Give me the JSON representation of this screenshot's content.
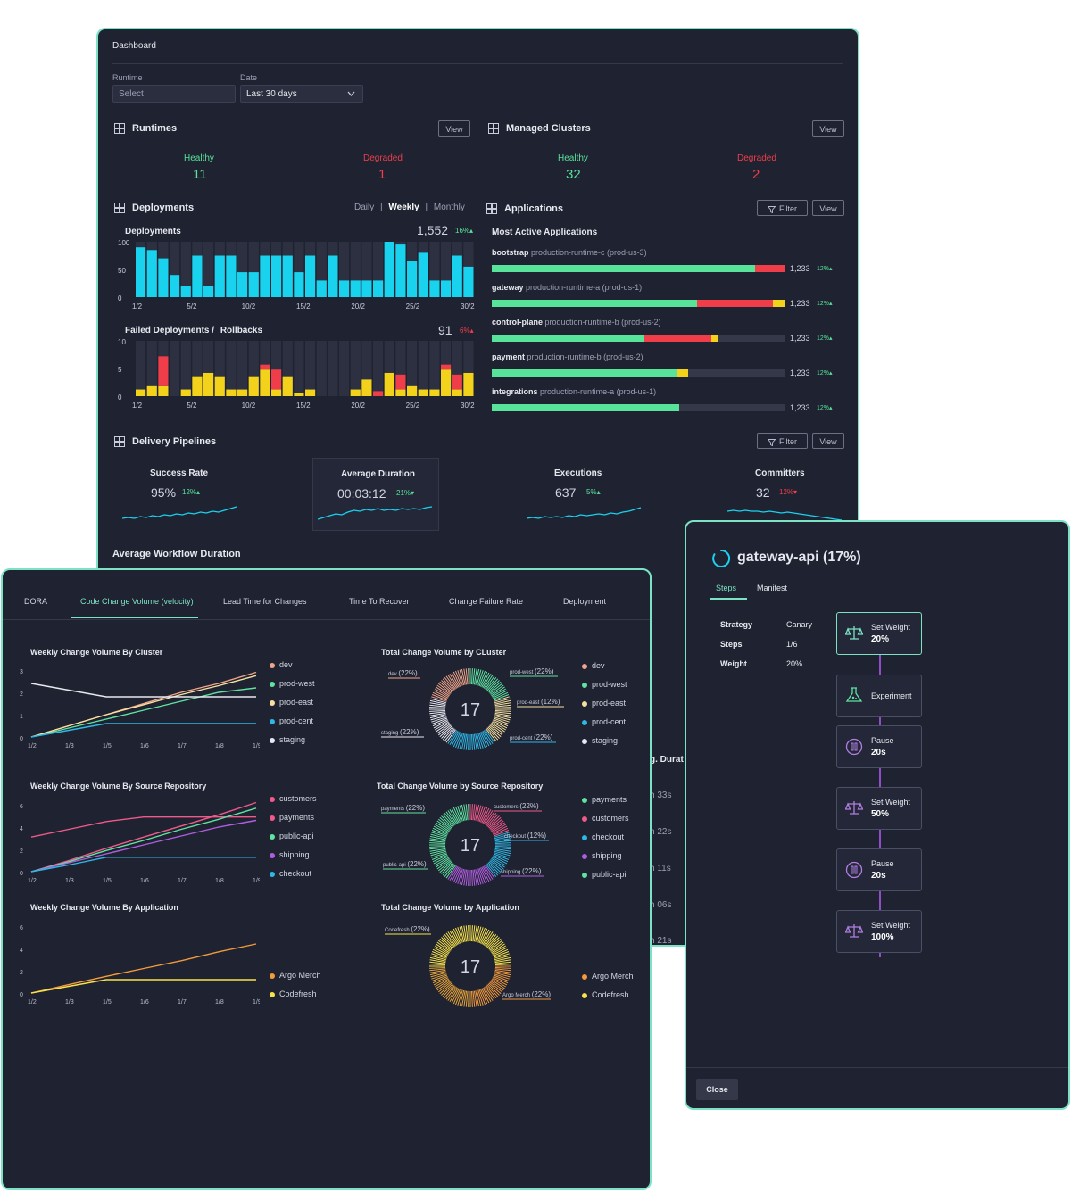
{
  "dashboard": {
    "title": "Dashboard",
    "runtime_label": "Runtime",
    "runtime_placeholder": "Select",
    "date_label": "Date",
    "date_value": "Last 30 days",
    "view": "View",
    "filter": "Filter",
    "runtimes": {
      "title": "Runtimes",
      "healthy_label": "Healthy",
      "healthy": "11",
      "degraded_label": "Degraded",
      "degraded": "1"
    },
    "clusters": {
      "title": "Managed Clusters",
      "healthy_label": "Healthy",
      "healthy": "32",
      "degraded_label": "Degraded",
      "degraded": "2"
    },
    "deployments": {
      "title": "Deployments",
      "period_daily": "Daily",
      "period_weekly": "Weekly",
      "period_monthly": "Monthly",
      "sep": "|",
      "chart_title": "Deployments",
      "total": "1,552",
      "change": "16%",
      "failed_title": "Failed Deployments /",
      "rollbacks_title": "Rollbacks",
      "failed_total": "91",
      "failed_change": "6%",
      "y_ticks": [
        "100",
        "50",
        "0"
      ],
      "y_ticks_failed": [
        "10",
        "5",
        "0"
      ],
      "x_ticks": [
        "1/2",
        "5/2",
        "10/2",
        "15/2",
        "20/2",
        "25/2",
        "30/2"
      ]
    },
    "applications": {
      "title": "Applications",
      "subtitle": "Most Active Applications",
      "items": [
        {
          "name": "bootstrap",
          "runtime": "production-runtime-c (prod-us-3)",
          "value": "1,233",
          "change": "12%",
          "segments": [
            0.9,
            0.1,
            0.0
          ]
        },
        {
          "name": "gateway",
          "runtime": "production-runtime-a (prod-us-1)",
          "value": "1,233",
          "change": "12%",
          "segments": [
            0.7,
            0.26,
            0.04
          ]
        },
        {
          "name": "control-plane",
          "runtime": "production-runtime-b (prod-us-2)",
          "value": "1,233",
          "change": "12%",
          "segments": [
            0.52,
            0.23,
            0.02
          ]
        },
        {
          "name": "payment",
          "runtime": "production-runtime-b (prod-us-2)",
          "value": "1,233",
          "change": "12%",
          "segments": [
            0.63,
            0.0,
            0.04
          ]
        },
        {
          "name": "integrations",
          "runtime": "production-runtime-a (prod-us-1)",
          "value": "1,233",
          "change": "12%",
          "segments": [
            0.64,
            0.0,
            0.0
          ]
        }
      ]
    },
    "pipelines": {
      "title": "Delivery Pipelines",
      "metrics": [
        {
          "label": "Success Rate",
          "value": "95%",
          "change": "12%",
          "dir": "up"
        },
        {
          "label": "Average  Duration",
          "value": "00:03:12",
          "change": "21%",
          "dir": "down"
        },
        {
          "label": "Executions",
          "value": "637",
          "change": "5%",
          "dir": "up"
        },
        {
          "label": "Committers",
          "value": "32",
          "change": "12%",
          "dir": "down"
        }
      ]
    },
    "avg_workflow_title": "Average Workflow Duration",
    "background_peek": [
      "g. Durat",
      "h 33s",
      "h 22s",
      "h 11s",
      "h 06s",
      "h 21s"
    ]
  },
  "dora": {
    "tabs": [
      "DORA",
      "Code Change Volume (velocity)",
      "Lead Time for Changes",
      "Time To Recover",
      "Change Failure Rate",
      "Deployment"
    ],
    "active_tab": 1,
    "x_ticks": [
      "1/2",
      "1/3",
      "1/5",
      "1/6",
      "1/7",
      "1/8",
      "1/9"
    ],
    "cluster_line": {
      "title": "Weekly Change Volume By Cluster",
      "y_ticks": [
        "3",
        "2",
        "1",
        "0"
      ],
      "legend": [
        {
          "name": "dev",
          "color": "#f0a58a"
        },
        {
          "name": "prod-west",
          "color": "#5fe3a1"
        },
        {
          "name": "prod-east",
          "color": "#f6e0a0"
        },
        {
          "name": "prod-cent",
          "color": "#2fb7e6"
        },
        {
          "name": "staging",
          "color": "#e8e8f0"
        }
      ]
    },
    "cluster_donut": {
      "title": "Total Change Volume by CLuster",
      "total": "17",
      "labels": [
        {
          "name": "dev",
          "pct": "(22%)"
        },
        {
          "name": "prod-west",
          "pct": "(22%)"
        },
        {
          "name": "prod-east",
          "pct": "(12%)"
        },
        {
          "name": "staging",
          "pct": "(22%)"
        },
        {
          "name": "prod-cent",
          "pct": "(22%)"
        }
      ]
    },
    "repo_line": {
      "title": "Weekly Change Volume By Source Repository",
      "y_ticks": [
        "6",
        "4",
        "2",
        "0"
      ],
      "legend": [
        {
          "name": "customers",
          "color": "#ef5a8a"
        },
        {
          "name": "payments",
          "color": "#ef5a8a"
        },
        {
          "name": "public-api",
          "color": "#5fe3a1"
        },
        {
          "name": "shipping",
          "color": "#b05ee0"
        },
        {
          "name": "checkout",
          "color": "#2fb7e6"
        }
      ]
    },
    "repo_donut": {
      "title": "Total Change Volume by Source  Repository",
      "total": "17",
      "labels": [
        {
          "name": "payments",
          "pct": "(22%)"
        },
        {
          "name": "customers",
          "pct": "(22%)"
        },
        {
          "name": "checkout",
          "pct": "(12%)"
        },
        {
          "name": "public-api",
          "pct": "(22%)"
        },
        {
          "name": "shipping",
          "pct": "(22%)"
        }
      ],
      "legend": [
        {
          "name": "payments",
          "color": "#5fe3a1"
        },
        {
          "name": "customers",
          "color": "#ef5a8a"
        },
        {
          "name": "checkout",
          "color": "#2fb7e6"
        },
        {
          "name": "shipping",
          "color": "#b05ee0"
        },
        {
          "name": "public-api",
          "color": "#5fe3a1"
        }
      ]
    },
    "app_line": {
      "title": "Weekly Change Volume By Application",
      "y_ticks": [
        "6",
        "4",
        "2",
        "0"
      ],
      "legend": [
        {
          "name": "Argo Merch",
          "color": "#f39a3c"
        },
        {
          "name": "Codefresh",
          "color": "#f6e24a"
        }
      ]
    },
    "app_donut": {
      "title": "Total Change Volume by Application",
      "total": "17",
      "labels": [
        {
          "name": "Codefresh",
          "pct": "(22%)"
        },
        {
          "name": "Argo Merch",
          "pct": "(22%)"
        }
      ]
    }
  },
  "rollout": {
    "title": "gateway-api (17%)",
    "tabs": [
      "Steps",
      "Manifest"
    ],
    "strategy_label": "Strategy",
    "strategy": "Canary",
    "steps_label": "Steps",
    "steps": "1/6",
    "weight_label": "Weight",
    "weight": "20%",
    "steps_list": [
      {
        "label": "Set Weight",
        "value": "20%",
        "icon": "scale-icon"
      },
      {
        "label": "Experiment",
        "value": "",
        "icon": "flask-icon"
      },
      {
        "label": "Pause",
        "value": "20s",
        "icon": "pause-icon"
      },
      {
        "label": "Set Weight",
        "value": "50%",
        "icon": "scale-icon"
      },
      {
        "label": "Pause",
        "value": "20s",
        "icon": "pause-icon"
      },
      {
        "label": "Set Weight",
        "value": "100%",
        "icon": "scale-icon"
      }
    ],
    "close": "Close"
  },
  "colors": {
    "accent": "#7be3c4",
    "cyan": "#19d2ee",
    "red": "#ef3e4a",
    "yellow": "#f3d21c",
    "green": "#57e39a",
    "bg": "#1f2230"
  },
  "chart_data": [
    {
      "type": "bar",
      "title": "Deployments",
      "ylim": [
        0,
        100
      ],
      "x": [
        1,
        2,
        3,
        4,
        5,
        6,
        7,
        8,
        9,
        10,
        11,
        12,
        13,
        14,
        15,
        16,
        17,
        18,
        19,
        20,
        21,
        22,
        23,
        24,
        25,
        26,
        27,
        28,
        29,
        30
      ],
      "values": [
        90,
        85,
        70,
        40,
        20,
        75,
        20,
        75,
        75,
        45,
        45,
        75,
        75,
        75,
        45,
        75,
        30,
        75,
        30,
        30,
        30,
        30,
        100,
        95,
        65,
        80,
        30,
        30,
        75,
        55
      ]
    },
    {
      "type": "bar",
      "title": "Failed Deployments / Rollbacks",
      "ylim": [
        0,
        10
      ],
      "x": [
        1,
        2,
        3,
        4,
        5,
        6,
        7,
        8,
        9,
        10,
        11,
        12,
        13,
        14,
        15,
        16,
        17,
        18,
        19,
        20,
        21,
        22,
        23,
        24,
        25,
        26,
        27,
        28,
        29,
        30
      ],
      "series": [
        {
          "name": "Failed Deployments",
          "values": [
            2,
            3,
            3,
            0,
            2,
            6,
            7,
            6,
            2,
            2,
            6,
            8,
            2,
            6,
            1,
            2,
            0,
            0,
            0,
            2,
            5,
            0,
            7,
            2,
            3,
            2,
            2,
            8,
            2,
            7
          ]
        },
        {
          "name": "Rollbacks",
          "values": [
            2,
            2,
            9,
            0,
            2,
            3,
            5,
            6,
            1,
            2,
            2,
            9,
            6,
            5,
            1,
            1,
            0,
            0,
            0,
            1,
            2,
            1,
            6,
            5,
            3,
            2,
            2,
            9,
            5,
            7
          ]
        }
      ]
    },
    {
      "type": "line",
      "title": "Weekly Change Volume By Cluster",
      "x": [
        "1/2",
        "1/3",
        "1/5",
        "1/6",
        "1/7",
        "1/8",
        "1/9"
      ],
      "ylim": [
        0,
        3
      ],
      "series": [
        {
          "name": "dev",
          "values": [
            0,
            0.5,
            1.0,
            1.5,
            2.0,
            2.4,
            2.9
          ]
        },
        {
          "name": "prod-west",
          "values": [
            0,
            0.4,
            0.8,
            1.2,
            1.6,
            2.0,
            2.2
          ]
        },
        {
          "name": "prod-east",
          "values": [
            0,
            0.5,
            1.0,
            1.45,
            1.9,
            2.3,
            2.75
          ]
        },
        {
          "name": "prod-cent",
          "values": [
            0,
            0.3,
            0.6,
            0.6,
            0.6,
            0.6,
            0.6
          ]
        },
        {
          "name": "staging",
          "values": [
            2.4,
            2.1,
            1.8,
            1.8,
            1.8,
            1.8,
            1.8
          ]
        }
      ]
    },
    {
      "type": "line",
      "title": "Weekly Change Volume By Source Repository",
      "x": [
        "1/2",
        "1/3",
        "1/5",
        "1/6",
        "1/7",
        "1/8",
        "1/9"
      ],
      "ylim": [
        0,
        6
      ],
      "series": [
        {
          "name": "customers",
          "values": [
            3.1,
            3.8,
            4.5,
            4.9,
            4.9,
            4.9,
            4.9
          ]
        },
        {
          "name": "payments",
          "values": [
            0,
            1.0,
            2.1,
            3.1,
            4.1,
            5.1,
            6.2
          ]
        },
        {
          "name": "public-api",
          "values": [
            0,
            0.9,
            1.9,
            2.8,
            3.8,
            4.7,
            5.7
          ]
        },
        {
          "name": "shipping",
          "values": [
            0,
            0.8,
            1.6,
            2.4,
            3.2,
            4.0,
            4.6
          ]
        },
        {
          "name": "checkout",
          "values": [
            0,
            0.6,
            1.3,
            1.3,
            1.3,
            1.3,
            1.3
          ]
        }
      ]
    },
    {
      "type": "line",
      "title": "Weekly Change Volume By Application",
      "x": [
        "1/2",
        "1/3",
        "1/5",
        "1/6",
        "1/7",
        "1/8",
        "1/9"
      ],
      "ylim": [
        0,
        6
      ],
      "series": [
        {
          "name": "Argo Merch",
          "values": [
            0,
            0.75,
            1.5,
            2.2,
            2.9,
            3.7,
            4.4
          ]
        },
        {
          "name": "Codefresh",
          "values": [
            0,
            0.6,
            1.2,
            1.2,
            1.2,
            1.2,
            1.2
          ]
        }
      ]
    }
  ]
}
